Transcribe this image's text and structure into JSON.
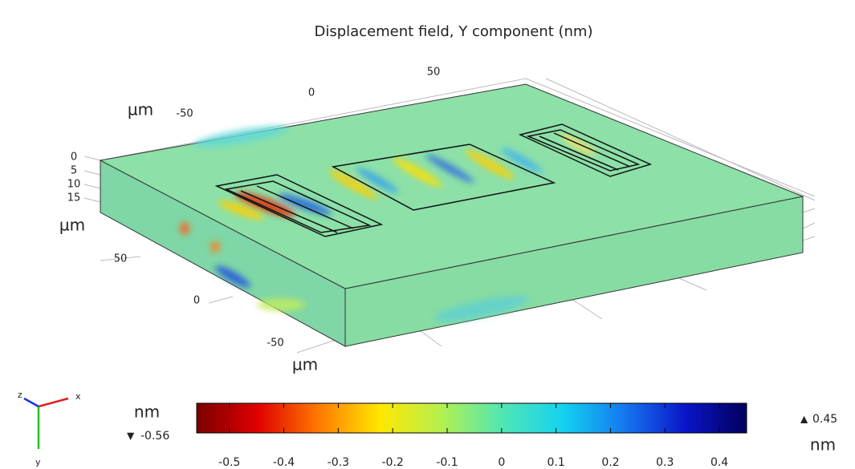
{
  "chart_data": {
    "type": "surface3d",
    "title": "Displacement field, Y component (nm)",
    "axes": {
      "x": {
        "label": "µm",
        "ticks": [
          -50,
          0,
          50
        ]
      },
      "y": {
        "label": "µm",
        "ticks": [
          50,
          0,
          -50
        ]
      },
      "z": {
        "label": "µm",
        "ticks": [
          0,
          5,
          10,
          15
        ]
      }
    },
    "triad": [
      "z",
      "x",
      "y"
    ],
    "colorbar": {
      "unit": "nm",
      "clim": [
        -0.56,
        0.45
      ],
      "ticks": [
        -0.5,
        -0.4,
        -0.3,
        -0.2,
        -0.1,
        0,
        0.1,
        0.2,
        0.3,
        0.4
      ],
      "colormap": [
        "#7a0000",
        "#e00000",
        "#ff7a00",
        "#ffe800",
        "#b4f050",
        "#50e6b4",
        "#14d2f0",
        "#1478f0",
        "#0a14c8",
        "#00005a"
      ]
    }
  }
}
